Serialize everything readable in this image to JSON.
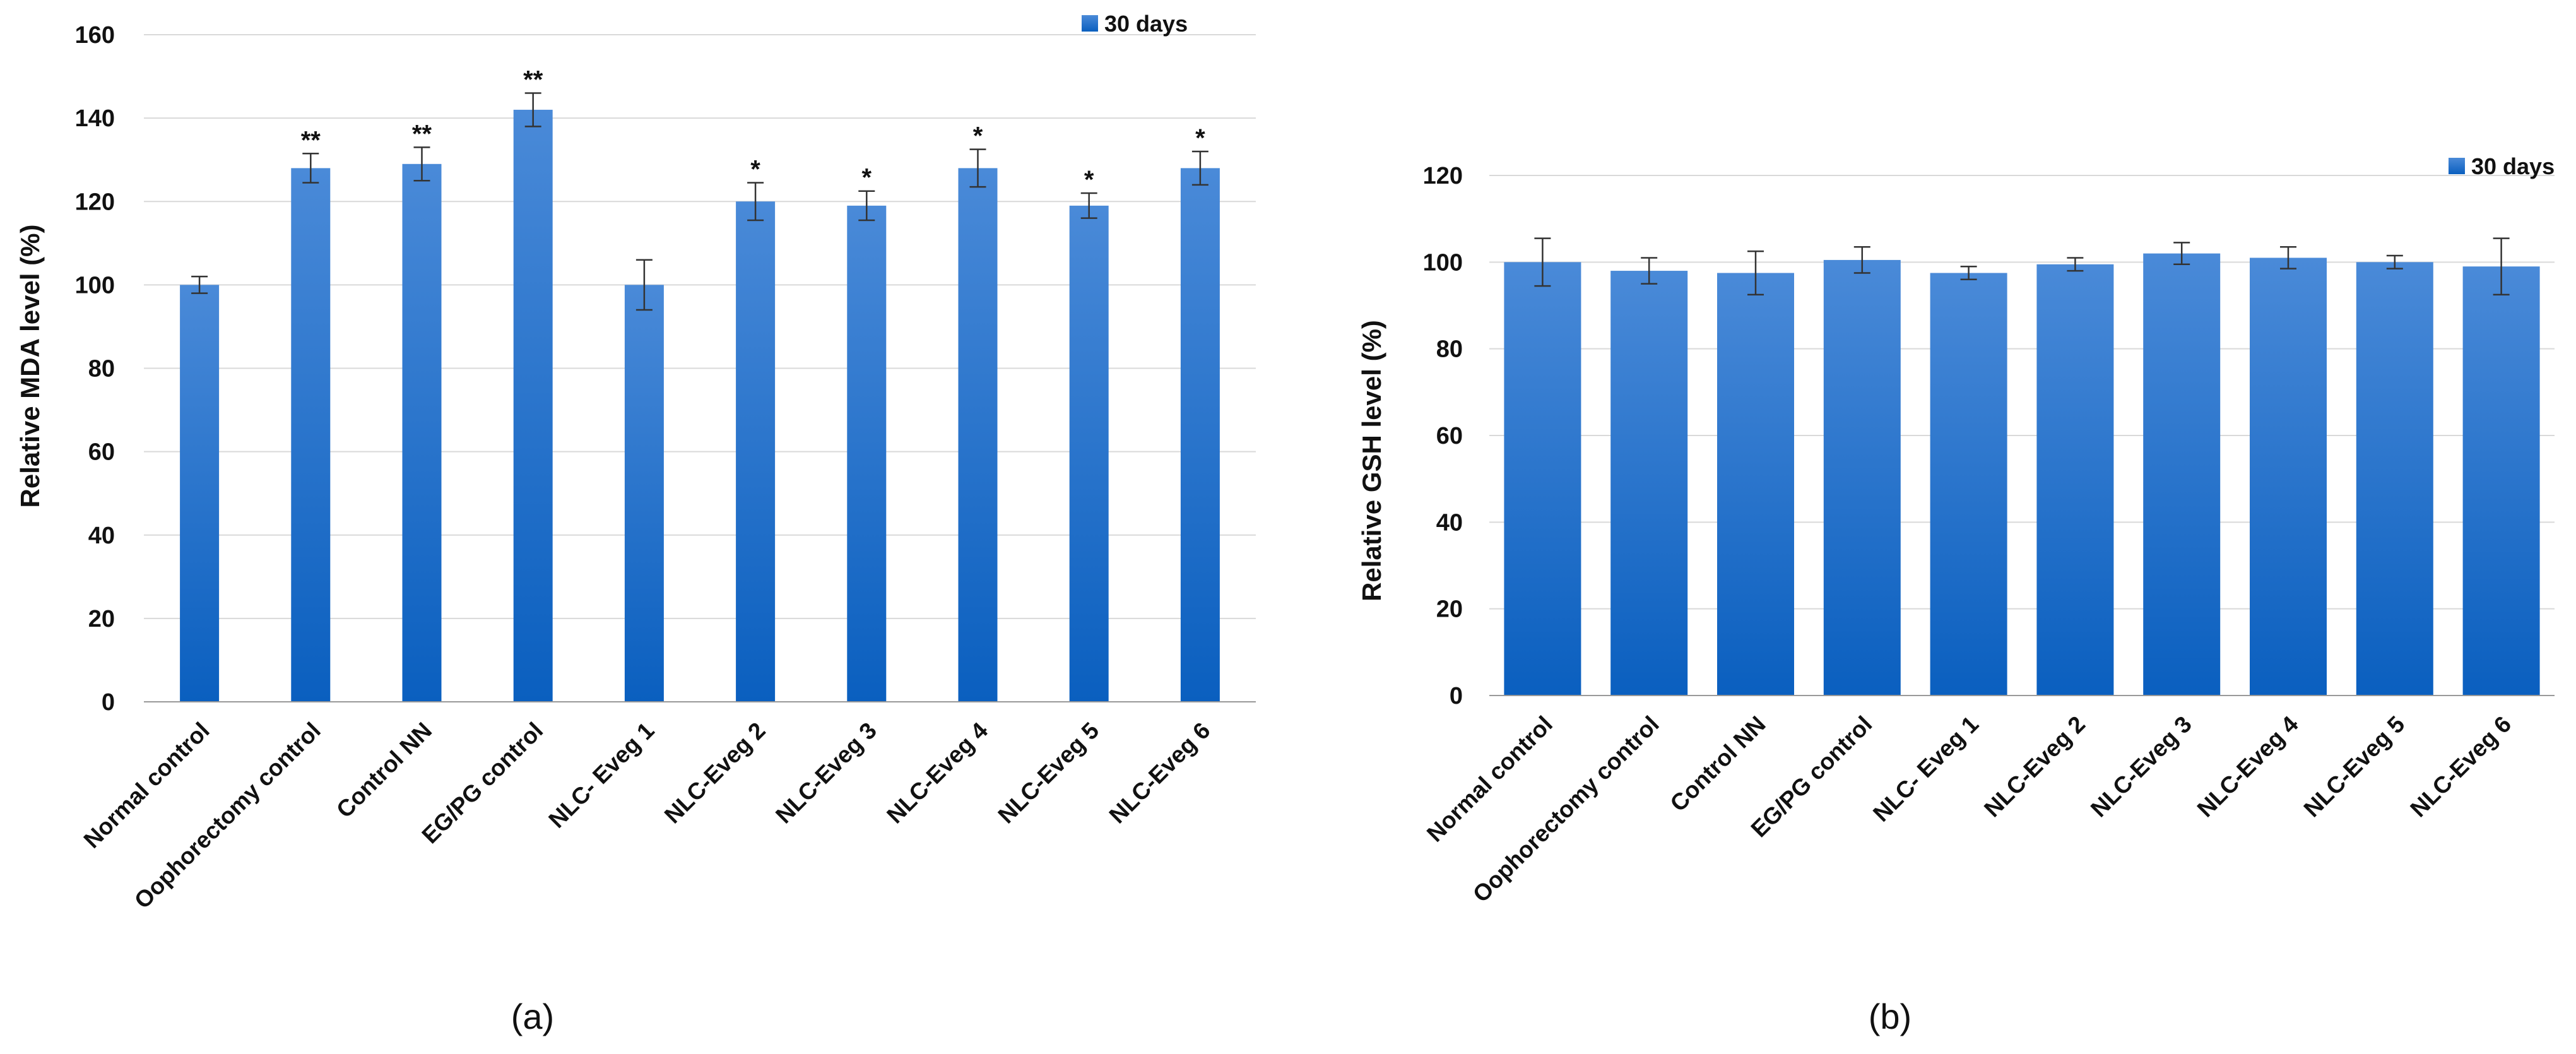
{
  "colors": {
    "bar_top": "#4a8ad8",
    "bar_bottom": "#0a5fbf",
    "grid": "#d9d9d9",
    "axis": "#999999",
    "error": "#333333"
  },
  "chart_data": [
    {
      "type": "bar",
      "panel_label": "(a)",
      "ylabel": "Relative MDA level (%)",
      "ylim": [
        0,
        160
      ],
      "yticks": [
        0,
        20,
        40,
        60,
        80,
        100,
        120,
        140,
        160
      ],
      "grid": true,
      "legend": {
        "label": "30 days",
        "position": "top-right"
      },
      "categories": [
        "Normal control",
        "Oophorectomy control",
        "Control NN",
        "EG/PG control",
        "NLC- Eveg 1",
        "NLC-Eveg 2",
        "NLC-Eveg 3",
        "NLC-Eveg 4",
        "NLC-Eveg 5",
        "NLC-Eveg 6"
      ],
      "series": [
        {
          "name": "30 days",
          "values": [
            100,
            128,
            129,
            142,
            100,
            120,
            119,
            128,
            119,
            128
          ],
          "errors": [
            2,
            3.5,
            4,
            4,
            6,
            4.5,
            3.5,
            4.5,
            3,
            4
          ],
          "annotations": [
            "",
            "**",
            "**",
            "**",
            "",
            "*",
            "*",
            "*",
            "*",
            "*"
          ]
        }
      ]
    },
    {
      "type": "bar",
      "panel_label": "(b)",
      "ylabel": "Relative GSH level (%)",
      "ylim": [
        0,
        120
      ],
      "yticks": [
        0,
        20,
        40,
        60,
        80,
        100,
        120
      ],
      "grid": true,
      "legend": {
        "label": "30 days",
        "position": "top-right"
      },
      "categories": [
        "Normal control",
        "Oophorectomy control",
        "Control NN",
        "EG/PG control",
        "NLC- Eveg 1",
        "NLC-Eveg 2",
        "NLC-Eveg 3",
        "NLC-Eveg 4",
        "NLC-Eveg 5",
        "NLC-Eveg 6"
      ],
      "series": [
        {
          "name": "30 days",
          "values": [
            100,
            98,
            97.5,
            100.5,
            97.5,
            99.5,
            102,
            101,
            100,
            99
          ],
          "errors": [
            5.5,
            3,
            5,
            3,
            1.5,
            1.5,
            2.5,
            2.5,
            1.5,
            6.5
          ],
          "annotations": [
            "",
            "",
            "",
            "",
            "",
            "",
            "",
            "",
            "",
            ""
          ]
        }
      ]
    }
  ]
}
